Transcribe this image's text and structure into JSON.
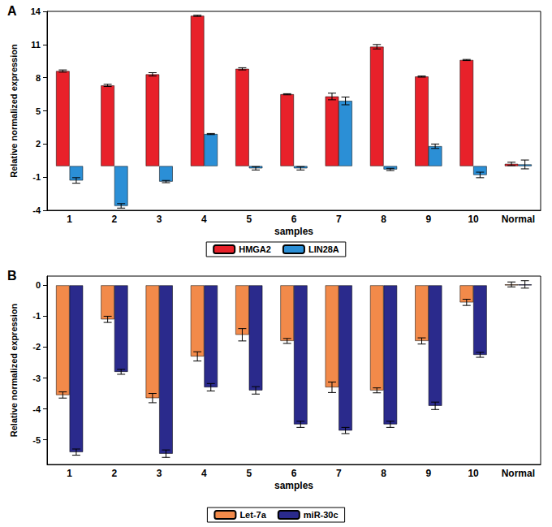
{
  "chart_data": [
    {
      "type": "bar",
      "title": "A",
      "x_label": "samples",
      "y_label": "Relative normalized expression",
      "categories": [
        "1",
        "2",
        "3",
        "4",
        "5",
        "6",
        "7",
        "8",
        "9",
        "10",
        "Normal"
      ],
      "series": [
        {
          "name": "HMGA2",
          "color": "#e8212a",
          "values": [
            8.6,
            7.3,
            8.3,
            13.6,
            8.8,
            6.5,
            6.3,
            10.8,
            8.1,
            9.6,
            0.2
          ],
          "errors": [
            0.1,
            0.1,
            0.15,
            0.05,
            0.1,
            0.05,
            0.3,
            0.2,
            0.05,
            0.05,
            0.15
          ]
        },
        {
          "name": "LIN28A",
          "color": "#2b8fd6",
          "values": [
            -1.3,
            -3.6,
            -1.4,
            2.9,
            -0.2,
            -0.2,
            5.9,
            -0.3,
            1.8,
            -0.8,
            0.15
          ],
          "errors": [
            0.25,
            0.2,
            0.1,
            0.05,
            0.15,
            0.15,
            0.35,
            0.1,
            0.2,
            0.25,
            0.4
          ]
        }
      ],
      "ylim": [
        -4,
        14
      ],
      "yticks": [
        -4,
        -1,
        2,
        5,
        8,
        11,
        14
      ],
      "grid": false,
      "legend": "bottom"
    },
    {
      "type": "bar",
      "title": "B",
      "x_label": "samples",
      "y_label": "Relative normalized expression",
      "categories": [
        "1",
        "2",
        "3",
        "4",
        "5",
        "6",
        "7",
        "8",
        "9",
        "10",
        "Normal"
      ],
      "series": [
        {
          "name": "Let-7a",
          "color": "#f28a4a",
          "values": [
            -3.55,
            -1.1,
            -3.65,
            -2.3,
            -1.6,
            -1.8,
            -3.3,
            -3.4,
            -1.8,
            -0.55,
            0.03
          ],
          "errors": [
            0.1,
            0.1,
            0.15,
            0.15,
            0.2,
            0.08,
            0.17,
            0.08,
            0.1,
            0.1,
            0.08
          ]
        },
        {
          "name": "miR-30c",
          "color": "#2a2a8c",
          "values": [
            -5.4,
            -2.8,
            -5.45,
            -3.3,
            -3.4,
            -4.5,
            -4.7,
            -4.5,
            -3.9,
            -2.25,
            0.03
          ],
          "errors": [
            0.1,
            0.08,
            0.12,
            0.12,
            0.12,
            0.1,
            0.1,
            0.1,
            0.12,
            0.08,
            0.12
          ]
        }
      ],
      "ylim": [
        -5.8,
        0.3
      ],
      "yticks": [
        -5,
        -4,
        -3,
        -2,
        -1,
        0
      ],
      "grid": false,
      "legend": "bottom"
    }
  ]
}
